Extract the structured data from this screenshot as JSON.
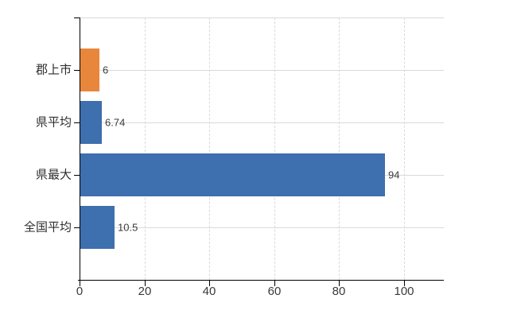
{
  "chart_data": {
    "type": "bar",
    "orientation": "horizontal",
    "title": "",
    "xlabel": "",
    "ylabel": "",
    "categories": [
      "郡上市",
      "県平均",
      "県最大",
      "全国平均"
    ],
    "values": [
      6,
      6.74,
      94,
      10.5
    ],
    "value_labels": [
      "6",
      "6.74",
      "94",
      "10.5"
    ],
    "bar_colors": [
      "#e8873b",
      "#3e6fae",
      "#3e6fae",
      "#3e6fae"
    ],
    "x_ticks": [
      "0",
      "20",
      "40",
      "60",
      "80",
      "100"
    ],
    "x_tick_values": [
      0,
      20,
      40,
      60,
      80,
      100
    ],
    "xlim": [
      0,
      112.3
    ],
    "grid": true,
    "legend": false,
    "colors": {
      "highlight_bar": "#e8873b",
      "default_bar": "#3e6fae",
      "axis": "#000000",
      "gridline": "#d9d9d9",
      "text": "#3a3a3a",
      "background": "#ffffff"
    }
  }
}
